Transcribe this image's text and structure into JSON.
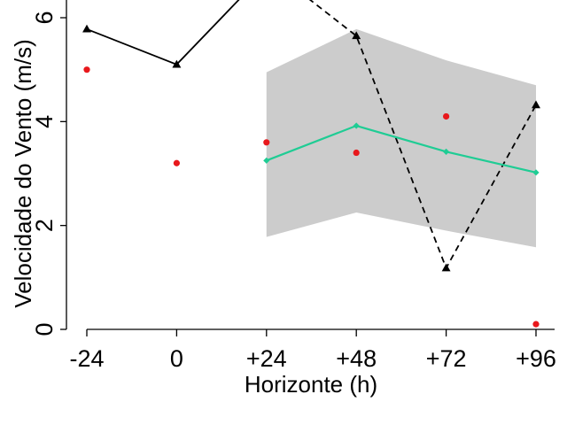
{
  "chart_data": {
    "type": "line",
    "xlabel": "Horizonte (h)",
    "ylabel": "Velocidade do Vento (m/s)",
    "x_categories": [
      "-24",
      "0",
      "+24",
      "+48",
      "+72",
      "+96"
    ],
    "x_values": [
      -24,
      0,
      24,
      48,
      72,
      96
    ],
    "xlim": [
      -24,
      96
    ],
    "ylim": [
      0,
      6
    ],
    "y_ticks": [
      0,
      2,
      4,
      6
    ],
    "y_tick_labels": [
      "0",
      "2",
      "4",
      "6"
    ],
    "grid": false,
    "series": [
      {
        "name": "observado-pontos",
        "kind": "points",
        "color": "#e8181c",
        "x": [
          -24,
          0,
          24,
          48,
          72,
          96
        ],
        "values": [
          5.0,
          3.2,
          3.6,
          3.4,
          4.1,
          0.1
        ]
      },
      {
        "name": "serie-solida",
        "kind": "line-solid-triangles",
        "color": "#000000",
        "x": [
          -24,
          0,
          24
        ],
        "values": [
          5.78,
          5.1,
          6.9
        ]
      },
      {
        "name": "serie-tracejada",
        "kind": "line-dashed-triangles",
        "color": "#000000",
        "x": [
          24,
          48,
          72,
          96
        ],
        "values": [
          7.0,
          5.65,
          1.18,
          4.32
        ],
        "marker_from_index": 1
      },
      {
        "name": "previsao-media",
        "kind": "line-diamonds",
        "color": "#1fcc94",
        "x": [
          24,
          48,
          72,
          96
        ],
        "values": [
          3.25,
          3.92,
          3.42,
          3.02
        ]
      }
    ],
    "band": {
      "name": "intervalo-previsao",
      "color": "#cccccc",
      "x": [
        24,
        48,
        72,
        96
      ],
      "upper": [
        4.95,
        5.78,
        5.18,
        4.7
      ],
      "lower": [
        1.78,
        2.25,
        1.9,
        1.58
      ]
    }
  }
}
